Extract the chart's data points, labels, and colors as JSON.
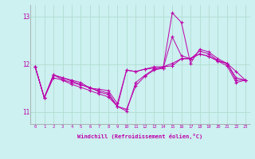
{
  "bg_color": "#cdf0f0",
  "grid_color": "#b0ddd0",
  "line_color": "#bb00aa",
  "xlim": [
    -0.5,
    23.5
  ],
  "ylim": [
    10.75,
    13.25
  ],
  "yticks": [
    11,
    12,
    13
  ],
  "xticks": [
    0,
    1,
    2,
    3,
    4,
    5,
    6,
    7,
    8,
    9,
    10,
    11,
    12,
    13,
    14,
    15,
    16,
    17,
    18,
    19,
    20,
    21,
    22,
    23
  ],
  "xlabel": "Windchill (Refroidissement éolien,°C)",
  "series": [
    [
      11.95,
      11.3,
      11.78,
      11.72,
      11.67,
      11.62,
      11.5,
      11.45,
      11.4,
      11.12,
      11.06,
      11.55,
      11.75,
      11.88,
      11.92,
      13.08,
      12.88,
      12.02,
      12.32,
      12.26,
      12.12,
      12.02,
      11.85,
      11.67
    ],
    [
      11.95,
      11.3,
      11.78,
      11.72,
      11.65,
      11.58,
      11.5,
      11.48,
      11.45,
      11.18,
      11.88,
      11.85,
      11.9,
      11.92,
      11.92,
      12.58,
      12.18,
      12.12,
      12.28,
      12.22,
      12.08,
      12.02,
      11.72,
      11.67
    ],
    [
      11.95,
      11.3,
      11.72,
      11.67,
      11.58,
      11.52,
      11.45,
      11.38,
      11.32,
      11.12,
      11.02,
      11.62,
      11.77,
      11.9,
      11.95,
      12.02,
      12.12,
      12.12,
      12.22,
      12.17,
      12.07,
      11.97,
      11.62,
      11.67
    ],
    [
      11.95,
      11.3,
      11.78,
      11.68,
      11.62,
      11.57,
      11.52,
      11.42,
      11.37,
      11.12,
      11.88,
      11.85,
      11.9,
      11.95,
      11.95,
      11.97,
      12.12,
      12.12,
      12.22,
      12.17,
      12.07,
      12.02,
      11.67,
      11.67
    ]
  ]
}
